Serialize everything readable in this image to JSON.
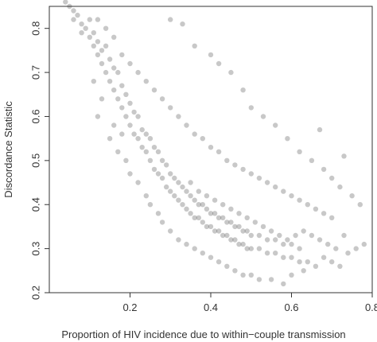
{
  "chart_data": {
    "type": "scatter",
    "title": "",
    "xlabel": "Proportion of HIV incidence due to within−couple transmission",
    "ylabel": "Discordance Statistic",
    "xlim": [
      0.0,
      0.8
    ],
    "ylim": [
      0.2,
      0.85
    ],
    "xticks": [
      0.2,
      0.4,
      0.6,
      0.8
    ],
    "xtick_labels": [
      "0.2",
      "0.4",
      "0.6",
      "0.8"
    ],
    "yticks": [
      0.2,
      0.3,
      0.4,
      0.5,
      0.6,
      0.7,
      0.8
    ],
    "ytick_labels": [
      "0.2",
      "0.3",
      "0.4",
      "0.5",
      "0.6",
      "0.7",
      "0.8"
    ],
    "grid": false,
    "legend": "none",
    "point_color": "#3a3a3a",
    "series": [
      {
        "points": [
          [
            0.04,
            0.86
          ],
          [
            0.05,
            0.85
          ],
          [
            0.06,
            0.84
          ],
          [
            0.06,
            0.82
          ],
          [
            0.07,
            0.83
          ],
          [
            0.08,
            0.81
          ],
          [
            0.08,
            0.79
          ],
          [
            0.09,
            0.8
          ],
          [
            0.1,
            0.78
          ],
          [
            0.1,
            0.82
          ],
          [
            0.11,
            0.76
          ],
          [
            0.11,
            0.79
          ],
          [
            0.12,
            0.74
          ],
          [
            0.12,
            0.77
          ],
          [
            0.13,
            0.72
          ],
          [
            0.13,
            0.75
          ],
          [
            0.14,
            0.7
          ],
          [
            0.14,
            0.76
          ],
          [
            0.15,
            0.68
          ],
          [
            0.15,
            0.73
          ],
          [
            0.16,
            0.66
          ],
          [
            0.16,
            0.71
          ],
          [
            0.17,
            0.64
          ],
          [
            0.17,
            0.7
          ],
          [
            0.18,
            0.62
          ],
          [
            0.18,
            0.67
          ],
          [
            0.19,
            0.6
          ],
          [
            0.19,
            0.65
          ],
          [
            0.2,
            0.58
          ],
          [
            0.2,
            0.63
          ],
          [
            0.21,
            0.56
          ],
          [
            0.21,
            0.61
          ],
          [
            0.22,
            0.55
          ],
          [
            0.22,
            0.6
          ],
          [
            0.23,
            0.53
          ],
          [
            0.23,
            0.57
          ],
          [
            0.24,
            0.52
          ],
          [
            0.24,
            0.56
          ],
          [
            0.25,
            0.5
          ],
          [
            0.25,
            0.55
          ],
          [
            0.26,
            0.48
          ],
          [
            0.26,
            0.53
          ],
          [
            0.27,
            0.47
          ],
          [
            0.27,
            0.52
          ],
          [
            0.28,
            0.46
          ],
          [
            0.28,
            0.5
          ],
          [
            0.29,
            0.44
          ],
          [
            0.29,
            0.49
          ],
          [
            0.3,
            0.43
          ],
          [
            0.3,
            0.47
          ],
          [
            0.31,
            0.42
          ],
          [
            0.31,
            0.46
          ],
          [
            0.32,
            0.41
          ],
          [
            0.32,
            0.45
          ],
          [
            0.33,
            0.4
          ],
          [
            0.33,
            0.44
          ],
          [
            0.34,
            0.39
          ],
          [
            0.34,
            0.43
          ],
          [
            0.35,
            0.38
          ],
          [
            0.35,
            0.42
          ],
          [
            0.36,
            0.37
          ],
          [
            0.36,
            0.41
          ],
          [
            0.37,
            0.37
          ],
          [
            0.37,
            0.4
          ],
          [
            0.38,
            0.36
          ],
          [
            0.38,
            0.4
          ],
          [
            0.39,
            0.35
          ],
          [
            0.39,
            0.39
          ],
          [
            0.4,
            0.35
          ],
          [
            0.4,
            0.38
          ],
          [
            0.41,
            0.34
          ],
          [
            0.41,
            0.38
          ],
          [
            0.42,
            0.34
          ],
          [
            0.42,
            0.37
          ],
          [
            0.43,
            0.33
          ],
          [
            0.43,
            0.37
          ],
          [
            0.44,
            0.33
          ],
          [
            0.44,
            0.36
          ],
          [
            0.45,
            0.32
          ],
          [
            0.45,
            0.36
          ],
          [
            0.46,
            0.32
          ],
          [
            0.46,
            0.35
          ],
          [
            0.47,
            0.31
          ],
          [
            0.47,
            0.35
          ],
          [
            0.48,
            0.31
          ],
          [
            0.48,
            0.34
          ],
          [
            0.49,
            0.3
          ],
          [
            0.49,
            0.34
          ],
          [
            0.5,
            0.3
          ],
          [
            0.5,
            0.33
          ],
          [
            0.52,
            0.3
          ],
          [
            0.52,
            0.33
          ],
          [
            0.54,
            0.29
          ],
          [
            0.54,
            0.32
          ],
          [
            0.56,
            0.29
          ],
          [
            0.56,
            0.32
          ],
          [
            0.58,
            0.28
          ],
          [
            0.58,
            0.31
          ],
          [
            0.6,
            0.28
          ],
          [
            0.6,
            0.31
          ],
          [
            0.62,
            0.27
          ],
          [
            0.62,
            0.3
          ],
          [
            0.64,
            0.27
          ],
          [
            0.66,
            0.26
          ],
          [
            0.68,
            0.28
          ],
          [
            0.7,
            0.27
          ],
          [
            0.72,
            0.26
          ],
          [
            0.74,
            0.29
          ],
          [
            0.76,
            0.3
          ],
          [
            0.78,
            0.31
          ],
          [
            0.12,
            0.82
          ],
          [
            0.14,
            0.8
          ],
          [
            0.16,
            0.78
          ],
          [
            0.18,
            0.74
          ],
          [
            0.2,
            0.72
          ],
          [
            0.22,
            0.7
          ],
          [
            0.24,
            0.68
          ],
          [
            0.26,
            0.66
          ],
          [
            0.28,
            0.64
          ],
          [
            0.3,
            0.62
          ],
          [
            0.32,
            0.6
          ],
          [
            0.34,
            0.58
          ],
          [
            0.36,
            0.56
          ],
          [
            0.38,
            0.55
          ],
          [
            0.4,
            0.53
          ],
          [
            0.42,
            0.52
          ],
          [
            0.44,
            0.5
          ],
          [
            0.46,
            0.49
          ],
          [
            0.48,
            0.48
          ],
          [
            0.5,
            0.47
          ],
          [
            0.52,
            0.46
          ],
          [
            0.54,
            0.45
          ],
          [
            0.56,
            0.44
          ],
          [
            0.58,
            0.43
          ],
          [
            0.6,
            0.42
          ],
          [
            0.62,
            0.41
          ],
          [
            0.64,
            0.4
          ],
          [
            0.66,
            0.39
          ],
          [
            0.68,
            0.38
          ],
          [
            0.7,
            0.37
          ],
          [
            0.3,
            0.82
          ],
          [
            0.33,
            0.81
          ],
          [
            0.36,
            0.76
          ],
          [
            0.4,
            0.74
          ],
          [
            0.42,
            0.72
          ],
          [
            0.45,
            0.7
          ],
          [
            0.48,
            0.66
          ],
          [
            0.5,
            0.62
          ],
          [
            0.53,
            0.6
          ],
          [
            0.56,
            0.58
          ],
          [
            0.59,
            0.55
          ],
          [
            0.62,
            0.52
          ],
          [
            0.65,
            0.5
          ],
          [
            0.68,
            0.48
          ],
          [
            0.7,
            0.46
          ],
          [
            0.72,
            0.44
          ],
          [
            0.75,
            0.42
          ],
          [
            0.77,
            0.4
          ],
          [
            0.73,
            0.51
          ],
          [
            0.67,
            0.57
          ],
          [
            0.15,
            0.55
          ],
          [
            0.17,
            0.52
          ],
          [
            0.19,
            0.5
          ],
          [
            0.2,
            0.47
          ],
          [
            0.22,
            0.45
          ],
          [
            0.24,
            0.42
          ],
          [
            0.25,
            0.4
          ],
          [
            0.27,
            0.38
          ],
          [
            0.28,
            0.36
          ],
          [
            0.3,
            0.34
          ],
          [
            0.32,
            0.32
          ],
          [
            0.34,
            0.31
          ],
          [
            0.36,
            0.3
          ],
          [
            0.38,
            0.29
          ],
          [
            0.4,
            0.28
          ],
          [
            0.42,
            0.27
          ],
          [
            0.44,
            0.26
          ],
          [
            0.46,
            0.25
          ],
          [
            0.48,
            0.24
          ],
          [
            0.5,
            0.24
          ],
          [
            0.52,
            0.23
          ],
          [
            0.55,
            0.23
          ],
          [
            0.58,
            0.22
          ],
          [
            0.6,
            0.24
          ],
          [
            0.63,
            0.25
          ],
          [
            0.12,
            0.6
          ],
          [
            0.13,
            0.64
          ],
          [
            0.11,
            0.68
          ],
          [
            0.16,
            0.58
          ],
          [
            0.18,
            0.56
          ],
          [
            0.35,
            0.45
          ],
          [
            0.37,
            0.43
          ],
          [
            0.39,
            0.42
          ],
          [
            0.41,
            0.41
          ],
          [
            0.43,
            0.4
          ],
          [
            0.45,
            0.39
          ],
          [
            0.47,
            0.38
          ],
          [
            0.49,
            0.37
          ],
          [
            0.51,
            0.36
          ],
          [
            0.53,
            0.35
          ],
          [
            0.55,
            0.34
          ],
          [
            0.57,
            0.33
          ],
          [
            0.59,
            0.32
          ],
          [
            0.61,
            0.33
          ],
          [
            0.63,
            0.34
          ],
          [
            0.65,
            0.33
          ],
          [
            0.67,
            0.32
          ],
          [
            0.69,
            0.31
          ],
          [
            0.71,
            0.3
          ],
          [
            0.73,
            0.33
          ]
        ]
      }
    ]
  }
}
